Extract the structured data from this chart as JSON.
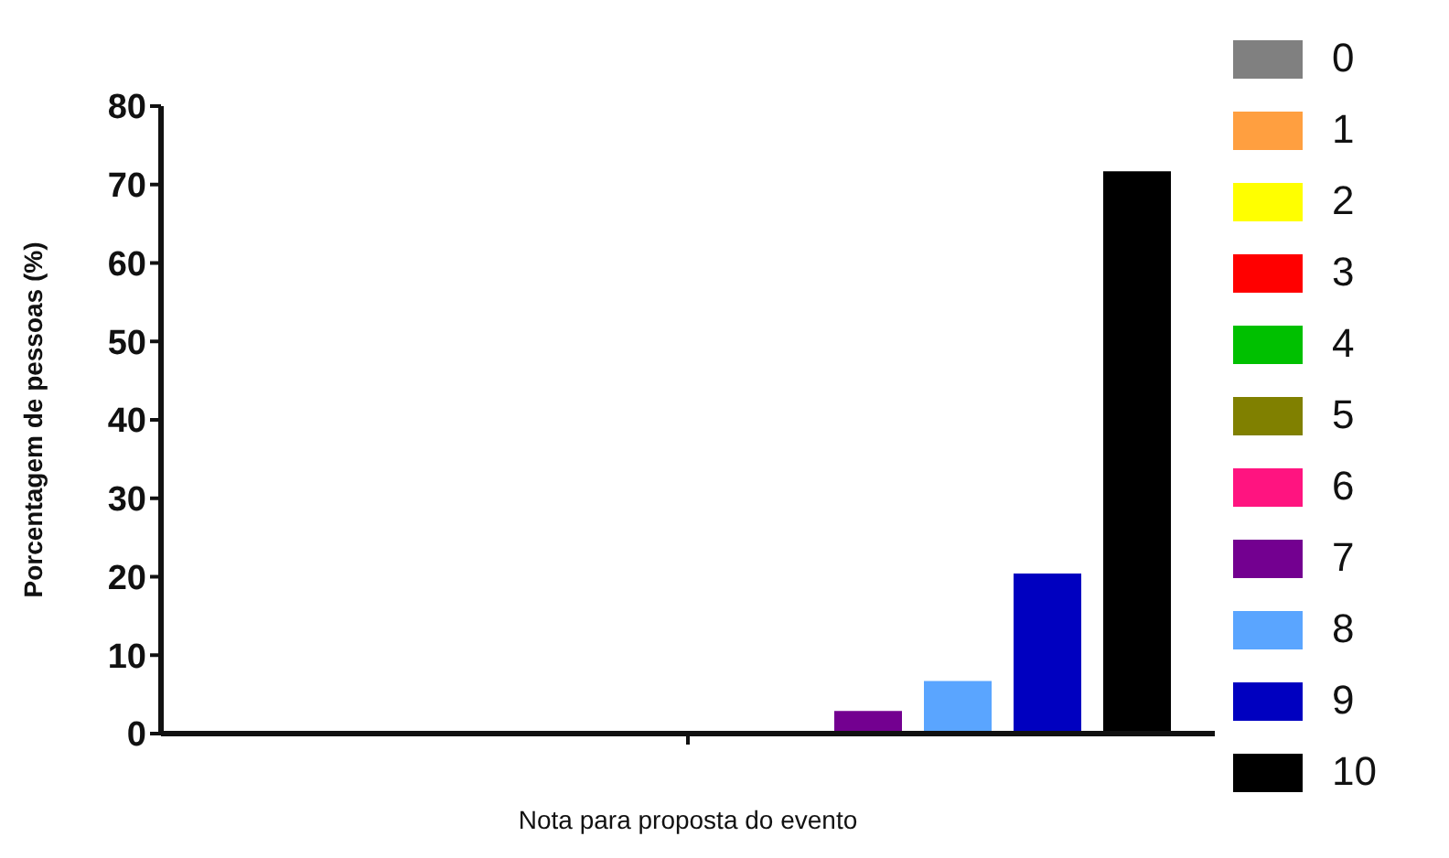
{
  "chart_data": {
    "type": "bar",
    "xlabel": "Nota para proposta do evento",
    "ylabel": "Porcentagem de pessoas (%)",
    "categories": [
      null
    ],
    "series": [
      {
        "name": "0",
        "color": "#808080",
        "values": [
          0
        ]
      },
      {
        "name": "1",
        "color": "#ff9f40",
        "values": [
          0
        ]
      },
      {
        "name": "2",
        "color": "#ffff00",
        "values": [
          0
        ]
      },
      {
        "name": "3",
        "color": "#ff0000",
        "values": [
          0
        ]
      },
      {
        "name": "4",
        "color": "#00c000",
        "values": [
          0
        ]
      },
      {
        "name": "5",
        "color": "#808000",
        "values": [
          0
        ]
      },
      {
        "name": "6",
        "color": "#ff1480",
        "values": [
          0
        ]
      },
      {
        "name": "7",
        "color": "#730090",
        "values": [
          2.9
        ]
      },
      {
        "name": "8",
        "color": "#5aa5ff",
        "values": [
          6.7
        ]
      },
      {
        "name": "9",
        "color": "#0000c0",
        "values": [
          20.4
        ]
      },
      {
        "name": "10",
        "color": "#000000",
        "values": [
          71.7
        ]
      }
    ],
    "ylim": [
      0,
      80
    ],
    "yticks": [
      0,
      10,
      20,
      30,
      40,
      50,
      60,
      70,
      80
    ],
    "grid": false,
    "legend": "right"
  }
}
